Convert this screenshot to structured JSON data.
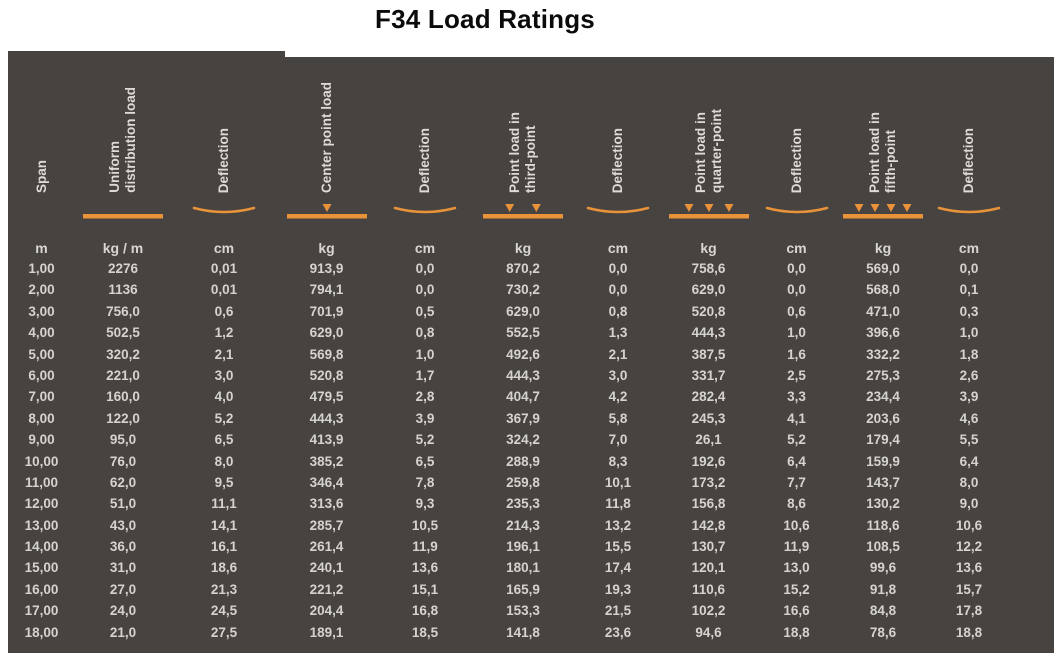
{
  "title": "F34 Load Ratings",
  "colors": {
    "accent_orange": "#E8923A",
    "table_bg": "#464341",
    "text_light": "#D6D3CF",
    "title_text": "#0B0B0B"
  },
  "table": {
    "columns": [
      {
        "id": "span",
        "label": "Span",
        "unit": "m",
        "symbol": "none"
      },
      {
        "id": "uniform-load",
        "label": "Uniform\ndistribution load",
        "unit": "kg / m",
        "symbol": "uniform-bar"
      },
      {
        "id": "deflection-1",
        "label": "Deflection",
        "unit": "cm",
        "symbol": "deflection-arc"
      },
      {
        "id": "center-point-load",
        "label": "Center point load",
        "unit": "kg",
        "symbol": "bar-arrows-1"
      },
      {
        "id": "deflection-2",
        "label": "Deflection",
        "unit": "cm",
        "symbol": "deflection-arc"
      },
      {
        "id": "third-point-load",
        "label": "Point load in\nthird-point",
        "unit": "kg",
        "symbol": "bar-arrows-2"
      },
      {
        "id": "deflection-3",
        "label": "Deflection",
        "unit": "cm",
        "symbol": "deflection-arc"
      },
      {
        "id": "quarter-point-load",
        "label": "Point load in\nquarter-point",
        "unit": "kg",
        "symbol": "bar-arrows-3"
      },
      {
        "id": "deflection-4",
        "label": "Deflection",
        "unit": "cm",
        "symbol": "deflection-arc"
      },
      {
        "id": "fifth-point-load",
        "label": "Point load in\nfifth-point",
        "unit": "kg",
        "symbol": "bar-arrows-4"
      },
      {
        "id": "deflection-5",
        "label": "Deflection",
        "unit": "cm",
        "symbol": "deflection-arc"
      }
    ],
    "rows": [
      [
        "1,00",
        "2276",
        "0,01",
        "913,9",
        "0,0",
        "870,2",
        "0,0",
        "758,6",
        "0,0",
        "569,0",
        "0,0"
      ],
      [
        "2,00",
        "1136",
        "0,01",
        "794,1",
        "0,0",
        "730,2",
        "0,0",
        "629,0",
        "0,0",
        "568,0",
        "0,1"
      ],
      [
        "3,00",
        "756,0",
        "0,6",
        "701,9",
        "0,5",
        "629,0",
        "0,8",
        "520,8",
        "0,6",
        "471,0",
        "0,3"
      ],
      [
        "4,00",
        "502,5",
        "1,2",
        "629,0",
        "0,8",
        "552,5",
        "1,3",
        "444,3",
        "1,0",
        "396,6",
        "1,0"
      ],
      [
        "5,00",
        "320,2",
        "2,1",
        "569,8",
        "1,0",
        "492,6",
        "2,1",
        "387,5",
        "1,6",
        "332,2",
        "1,8"
      ],
      [
        "6,00",
        "221,0",
        "3,0",
        "520,8",
        "1,7",
        "444,3",
        "3,0",
        "331,7",
        "2,5",
        "275,3",
        "2,6"
      ],
      [
        "7,00",
        "160,0",
        "4,0",
        "479,5",
        "2,8",
        "404,7",
        "4,2",
        "282,4",
        "3,3",
        "234,4",
        "3,9"
      ],
      [
        "8,00",
        "122,0",
        "5,2",
        "444,3",
        "3,9",
        "367,9",
        "5,8",
        "245,3",
        "4,1",
        "203,6",
        "4,6"
      ],
      [
        "9,00",
        "95,0",
        "6,5",
        "413,9",
        "5,2",
        "324,2",
        "7,0",
        "26,1",
        "5,2",
        "179,4",
        "5,5"
      ],
      [
        "10,00",
        "76,0",
        "8,0",
        "385,2",
        "6,5",
        "288,9",
        "8,3",
        "192,6",
        "6,4",
        "159,9",
        "6,4"
      ],
      [
        "11,00",
        "62,0",
        "9,5",
        "346,4",
        "7,8",
        "259,8",
        "10,1",
        "173,2",
        "7,7",
        "143,7",
        "8,0"
      ],
      [
        "12,00",
        "51,0",
        "11,1",
        "313,6",
        "9,3",
        "235,3",
        "11,8",
        "156,8",
        "8,6",
        "130,2",
        "9,0"
      ],
      [
        "13,00",
        "43,0",
        "14,1",
        "285,7",
        "10,5",
        "214,3",
        "13,2",
        "142,8",
        "10,6",
        "118,6",
        "10,6"
      ],
      [
        "14,00",
        "36,0",
        "16,1",
        "261,4",
        "11,9",
        "196,1",
        "15,5",
        "130,7",
        "11,9",
        "108,5",
        "12,2"
      ],
      [
        "15,00",
        "31,0",
        "18,6",
        "240,1",
        "13,6",
        "180,1",
        "17,4",
        "120,1",
        "13,0",
        "99,6",
        "13,6"
      ],
      [
        "16,00",
        "27,0",
        "21,3",
        "221,2",
        "15,1",
        "165,9",
        "19,3",
        "110,6",
        "15,2",
        "91,8",
        "15,7"
      ],
      [
        "17,00",
        "24,0",
        "24,5",
        "204,4",
        "16,8",
        "153,3",
        "21,5",
        "102,2",
        "16,6",
        "84,8",
        "17,8"
      ],
      [
        "18,00",
        "21,0",
        "27,5",
        "189,1",
        "18,5",
        "141,8",
        "23,6",
        "94,6",
        "18,8",
        "78,6",
        "18,8"
      ]
    ]
  }
}
